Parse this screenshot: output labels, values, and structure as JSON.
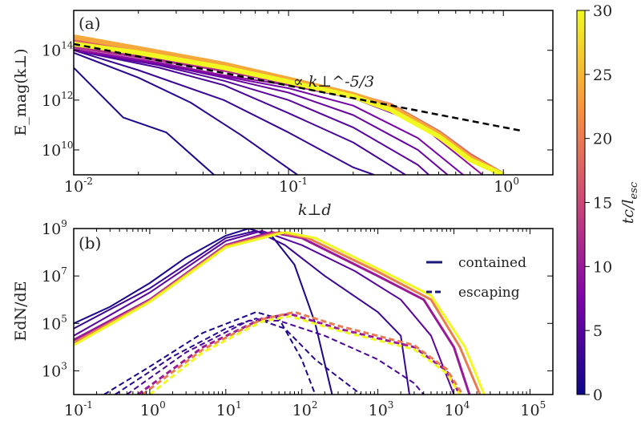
{
  "colorbar": {
    "label": "tc/l_esc",
    "label_main": "tc/l",
    "label_sub": "esc",
    "range": [
      0,
      30
    ],
    "ticks": [
      "0",
      "5",
      "10",
      "15",
      "20",
      "25",
      "30"
    ],
    "colormap": "plasma"
  },
  "chart_data": [
    {
      "type": "line",
      "panel_label": "(a)",
      "xlabel": "k⊥d",
      "ylabel": "E_mag(k⊥)",
      "x_scale": "log",
      "y_scale": "log",
      "xlim": [
        0.01,
        1.7
      ],
      "ylim": [
        1000000000.0,
        4000000000000000.0
      ],
      "xticks": [
        "10^-2",
        "10^-1",
        "10^0"
      ],
      "yticks": [
        "10^10",
        "10^12",
        "10^14"
      ],
      "annotation": "∝ k⊥^-5/3",
      "reference_line": {
        "style": "dashed",
        "color": "#000000",
        "points": [
          [
            0.01,
            180000000000000.0
          ],
          [
            1.2,
            60000000000.0
          ]
        ]
      },
      "series": [
        {
          "t": 1,
          "points": [
            [
              0.01,
              20000000000000.0
            ],
            [
              0.017,
              200000000000.0
            ],
            [
              0.027,
              50000000000.0
            ],
            [
              0.045,
              1000000000.0
            ]
          ]
        },
        {
          "t": 2,
          "points": [
            [
              0.01,
              80000000000000.0
            ],
            [
              0.02,
              8000000000000.0
            ],
            [
              0.035,
              800000000000.0
            ],
            [
              0.06,
              40000000000.0
            ],
            [
              0.11,
              1000000000.0
            ]
          ]
        },
        {
          "t": 3,
          "points": [
            [
              0.01,
              100000000000000.0
            ],
            [
              0.02,
              16000000000000.0
            ],
            [
              0.05,
              1000000000000.0
            ],
            [
              0.1,
              50000000000.0
            ],
            [
              0.2,
              2000000000.0
            ],
            [
              0.25,
              1000000000.0
            ]
          ]
        },
        {
          "t": 4,
          "points": [
            [
              0.01,
              100000000000000.0
            ],
            [
              0.025,
              20000000000000.0
            ],
            [
              0.05,
              4000000000000.0
            ],
            [
              0.1,
              300000000000.0
            ],
            [
              0.2,
              20000000000.0
            ],
            [
              0.35,
              1000000000.0
            ]
          ]
        },
        {
          "t": 5,
          "points": [
            [
              0.01,
              100000000000000.0
            ],
            [
              0.025,
              25000000000000.0
            ],
            [
              0.05,
              6000000000000.0
            ],
            [
              0.1,
              1000000000000.0
            ],
            [
              0.2,
              80000000000.0
            ],
            [
              0.4,
              2500000000.0
            ],
            [
              0.45,
              1000000000.0
            ]
          ]
        },
        {
          "t": 6,
          "points": [
            [
              0.01,
              100000000000000.0
            ],
            [
              0.025,
              28000000000000.0
            ],
            [
              0.05,
              8000000000000.0
            ],
            [
              0.1,
              2000000000000.0
            ],
            [
              0.2,
              250000000000.0
            ],
            [
              0.4,
              10000000000.0
            ],
            [
              0.55,
              1000000000.0
            ]
          ]
        },
        {
          "t": 7,
          "points": [
            [
              0.01,
              100000000000000.0
            ],
            [
              0.025,
              30000000000000.0
            ],
            [
              0.05,
              9000000000000.0
            ],
            [
              0.1,
              3000000000000.0
            ],
            [
              0.2,
              600000000000.0
            ],
            [
              0.4,
              30000000000.0
            ],
            [
              0.65,
              1000000000.0
            ]
          ]
        },
        {
          "t": 9,
          "points": [
            [
              0.01,
              110000000000000.0
            ],
            [
              0.025,
              32000000000000.0
            ],
            [
              0.05,
              10000000000000.0
            ],
            [
              0.1,
              4000000000000.0
            ],
            [
              0.2,
              1200000000000.0
            ],
            [
              0.4,
              120000000000.0
            ],
            [
              0.8,
              1000000000.0
            ]
          ]
        },
        {
          "t": 12,
          "points": [
            [
              0.01,
              150000000000000.0
            ],
            [
              0.02,
              60000000000000.0
            ],
            [
              0.05,
              17000000000000.0
            ],
            [
              0.1,
              5000000000000.0
            ],
            [
              0.2,
              1400000000000.0
            ],
            [
              0.3,
              500000000000.0
            ],
            [
              0.5,
              40000000000.0
            ],
            [
              0.7,
              5000000000.0
            ],
            [
              1.0,
              1000000000.0
            ]
          ]
        },
        {
          "t": 18,
          "points": [
            [
              0.01,
              250000000000000.0
            ],
            [
              0.02,
              90000000000000.0
            ],
            [
              0.05,
              22000000000000.0
            ],
            [
              0.1,
              6000000000000.0
            ],
            [
              0.2,
              1600000000000.0
            ],
            [
              0.3,
              600000000000.0
            ],
            [
              0.5,
              50000000000.0
            ],
            [
              0.7,
              6000000000.0
            ],
            [
              1.0,
              1000000000.0
            ]
          ]
        },
        {
          "t": 24,
          "points": [
            [
              0.01,
              350000000000000.0
            ],
            [
              0.02,
              120000000000000.0
            ],
            [
              0.05,
              28000000000000.0
            ],
            [
              0.1,
              7000000000000.0
            ],
            [
              0.2,
              1700000000000.0
            ],
            [
              0.3,
              550000000000.0
            ],
            [
              0.5,
              45000000000.0
            ],
            [
              0.7,
              5000000000.0
            ],
            [
              1.0,
              1000000000.0
            ]
          ]
        },
        {
          "t": 30,
          "points": [
            [
              0.01,
              180000000000000.0
            ],
            [
              0.02,
              80000000000000.0
            ],
            [
              0.05,
              20000000000000.0
            ],
            [
              0.1,
              5500000000000.0
            ],
            [
              0.2,
              1400000000000.0
            ],
            [
              0.3,
              400000000000.0
            ],
            [
              0.5,
              35000000000.0
            ],
            [
              0.7,
              4000000000.0
            ],
            [
              1.0,
              1000000000.0
            ]
          ]
        }
      ]
    },
    {
      "type": "line",
      "panel_label": "(b)",
      "xlabel": "",
      "ylabel": "EdN/dE",
      "x_scale": "log",
      "y_scale": "log",
      "xlim": [
        0.1,
        200000.0
      ],
      "ylim": [
        100.0,
        1000000000.0
      ],
      "xticks": [
        "10^-1",
        "10^0",
        "10^1",
        "10^2",
        "10^3",
        "10^4",
        "10^5"
      ],
      "yticks": [
        "10^3",
        "10^5",
        "10^7",
        "10^9"
      ],
      "legend": {
        "position": "right",
        "entries": [
          {
            "label": "contained",
            "style": "solid"
          },
          {
            "label": "escaping",
            "style": "dashed"
          }
        ]
      },
      "series": [
        {
          "t": 1,
          "kind": "contained",
          "points": [
            [
              0.1,
              100000.0
            ],
            [
              0.3,
              500000.0
            ],
            [
              1,
              5000000.0
            ],
            [
              3,
              60000000.0
            ],
            [
              10,
              500000000.0
            ],
            [
              20,
              1000000000.0
            ],
            [
              40,
              500000000.0
            ],
            [
              80,
              30000000.0
            ],
            [
              150,
              100000.0
            ],
            [
              250,
              100.0
            ]
          ]
        },
        {
          "t": 3,
          "kind": "contained",
          "points": [
            [
              0.1,
              60000.0
            ],
            [
              1,
              3000000.0
            ],
            [
              10,
              400000000.0
            ],
            [
              25,
              800000000.0
            ],
            [
              60,
              200000000.0
            ],
            [
              200,
              10000000.0
            ],
            [
              1000,
              300000.0
            ],
            [
              2000,
              30000.0
            ],
            [
              2600,
              100.0
            ]
          ]
        },
        {
          "t": 5,
          "kind": "contained",
          "points": [
            [
              0.1,
              30000.0
            ],
            [
              1,
              2000000.0
            ],
            [
              10,
              300000000.0
            ],
            [
              30,
              800000000.0
            ],
            [
              100,
              200000000.0
            ],
            [
              500,
              16000000.0
            ],
            [
              2000,
              1000000.0
            ],
            [
              5000,
              30000.0
            ],
            [
              10000,
              100.0
            ]
          ]
        },
        {
          "t": 10,
          "kind": "contained",
          "points": [
            [
              0.1,
              20000.0
            ],
            [
              1,
              1000000.0
            ],
            [
              10,
              200000000.0
            ],
            [
              40,
              700000000.0
            ],
            [
              100,
              400000000.0
            ],
            [
              1000,
              10000000.0
            ],
            [
              4000,
              1000000.0
            ],
            [
              10000,
              10000.0
            ],
            [
              16000,
              100.0
            ]
          ]
        },
        {
          "t": 20,
          "kind": "contained",
          "points": [
            [
              0.1,
              15000.0
            ],
            [
              1,
              900000.0
            ],
            [
              10,
              180000000.0
            ],
            [
              50,
              700000000.0
            ],
            [
              120,
              400000000.0
            ],
            [
              1000,
              15000000.0
            ],
            [
              5000,
              1000000.0
            ],
            [
              12000,
              10000.0
            ],
            [
              22000,
              100.0
            ]
          ]
        },
        {
          "t": 30,
          "kind": "contained",
          "points": [
            [
              0.1,
              12000.0
            ],
            [
              1,
              800000.0
            ],
            [
              10,
              160000000.0
            ],
            [
              60,
              700000000.0
            ],
            [
              150,
              400000000.0
            ],
            [
              1000,
              20000000.0
            ],
            [
              5000,
              1500000.0
            ],
            [
              14000,
              10000.0
            ],
            [
              25000,
              100.0
            ]
          ]
        },
        {
          "t": 1,
          "kind": "escaping",
          "points": [
            [
              0.25,
              100.0
            ],
            [
              1,
              1500.0
            ],
            [
              5,
              40000.0
            ],
            [
              25,
              300000.0
            ],
            [
              50,
              160000.0
            ],
            [
              100,
              3000.0
            ],
            [
              150,
              100.0
            ]
          ]
        },
        {
          "t": 2,
          "kind": "escaping",
          "points": [
            [
              0.35,
              100.0
            ],
            [
              2,
              4000.0
            ],
            [
              10,
              60000.0
            ],
            [
              25,
              160000.0
            ],
            [
              60,
              60000.0
            ],
            [
              150,
              3000.0
            ],
            [
              600,
              100.0
            ]
          ]
        },
        {
          "t": 4,
          "kind": "escaping",
          "points": [
            [
              0.5,
              100.0
            ],
            [
              3,
              6000.0
            ],
            [
              20,
              130000.0
            ],
            [
              50,
              130000.0
            ],
            [
              200,
              30000.0
            ],
            [
              1000,
              3000.0
            ],
            [
              3000,
              300.0
            ],
            [
              4000,
              100.0
            ]
          ]
        },
        {
          "t": 10,
          "kind": "escaping",
          "points": [
            [
              0.7,
              100.0
            ],
            [
              5,
              10000.0
            ],
            [
              30,
              160000.0
            ],
            [
              70,
              250000.0
            ],
            [
              300,
              60000.0
            ],
            [
              3000,
              10000.0
            ],
            [
              8000,
              1000.0
            ],
            [
              12000,
              100.0
            ]
          ]
        },
        {
          "t": 20,
          "kind": "escaping",
          "points": [
            [
              0.8,
              100.0
            ],
            [
              5,
              8000.0
            ],
            [
              30,
              150000.0
            ],
            [
              80,
              300000.0
            ],
            [
              300,
              80000.0
            ],
            [
              3000,
              12000.0
            ],
            [
              8000,
              1200.0
            ],
            [
              13000,
              100.0
            ]
          ]
        },
        {
          "t": 30,
          "kind": "escaping",
          "points": [
            [
              1.0,
              100.0
            ],
            [
              5,
              6000.0
            ],
            [
              30,
              120000.0
            ],
            [
              70,
              200000.0
            ],
            [
              300,
              50000.0
            ],
            [
              3000,
              8000.0
            ],
            [
              8000,
              800.0
            ],
            [
              12000,
              100.0
            ]
          ]
        }
      ]
    }
  ]
}
